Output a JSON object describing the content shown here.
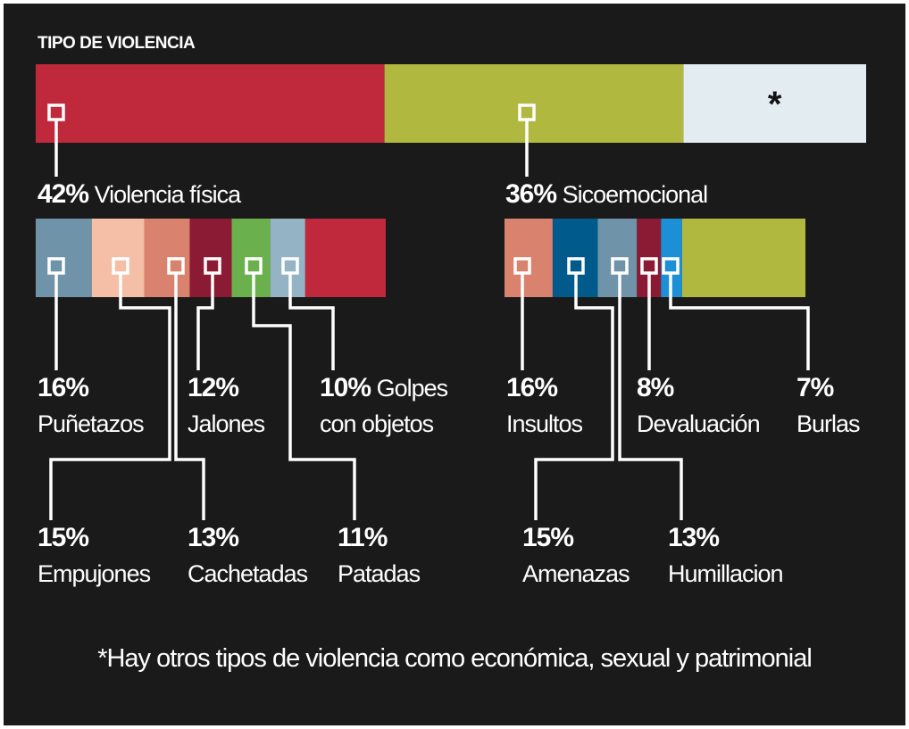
{
  "chart_data": {
    "type": "bar",
    "title": "TIPO DE VIOLENCIA",
    "categories": [
      "Violencia física",
      "Sicoemocional",
      "*"
    ],
    "values": [
      42,
      36,
      22
    ],
    "value_labels": [
      "42%",
      "36%",
      null
    ],
    "colors": [
      "#c0283c",
      "#b0b840",
      "#e3ecf1"
    ],
    "breakdowns": [
      {
        "categories": [
          "Puñetazos",
          "Empujones",
          "Cachetadas",
          "Jalones",
          "Patadas",
          "Golpes con objetos",
          null
        ],
        "values": [
          16,
          15,
          13,
          12,
          11,
          10,
          23
        ],
        "value_labels": [
          "16%",
          "15%",
          "13%",
          "12%",
          "11%",
          "10%",
          null
        ],
        "colors": [
          "#6f93a8",
          "#f4bfa6",
          "#d9826e",
          "#8b1a34",
          "#6ab04c",
          "#94b3c5",
          "#c0283c"
        ]
      },
      {
        "categories": [
          "Insultos",
          "Amenazas",
          "Humillacion",
          "Devaluación",
          "Burlas",
          null
        ],
        "values": [
          16,
          15,
          13,
          8,
          7,
          41
        ],
        "value_labels": [
          "16%",
          "15%",
          "13%",
          "8%",
          "7%",
          null
        ],
        "colors": [
          "#d9826e",
          "#005a8c",
          "#6f93a8",
          "#8b1a34",
          "#1c8fd6",
          "#b0b840"
        ]
      }
    ],
    "footnote": "*Hay otros tipos de violencia como económica, sexual y patrimonial"
  }
}
